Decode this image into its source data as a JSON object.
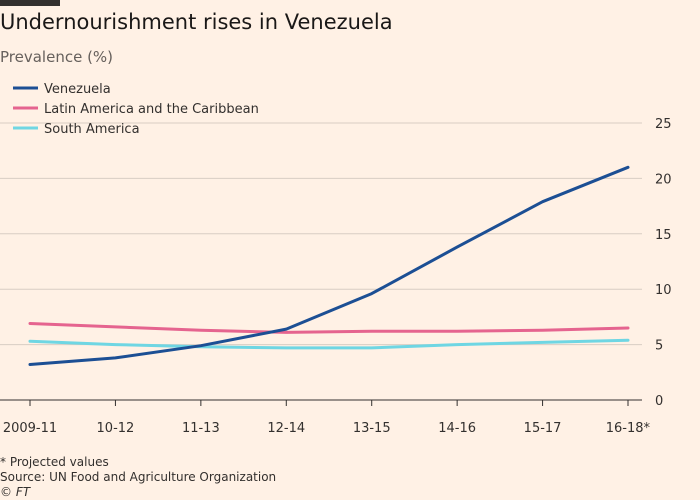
{
  "header": {
    "title": "Undernourishment rises in Venezuela",
    "subtitle": "Prevalence (%)"
  },
  "footer": {
    "note": "* Projected values",
    "source": "Source: UN Food and Agriculture Organization",
    "credit": "© FT"
  },
  "chart_data": {
    "type": "line",
    "title": "Undernourishment rises in Venezuela",
    "subtitle": "Prevalence (%)",
    "xlabel": "",
    "ylabel": "",
    "categories": [
      "2009-11",
      "10-12",
      "11-13",
      "12-14",
      "13-15",
      "14-16",
      "15-17",
      "16-18*"
    ],
    "ylim": [
      0,
      25
    ],
    "yticks": [
      0,
      5,
      10,
      15,
      20,
      25
    ],
    "grid": true,
    "legend_position": "top-left",
    "series": [
      {
        "name": "Venezuela",
        "color": "#1c4f94",
        "values": [
          3.2,
          3.8,
          4.9,
          6.4,
          9.6,
          13.8,
          17.9,
          21.0
        ]
      },
      {
        "name": "Latin America and the Caribbean",
        "color": "#e5648f",
        "values": [
          6.9,
          6.6,
          6.3,
          6.1,
          6.2,
          6.2,
          6.3,
          6.5
        ]
      },
      {
        "name": "South America",
        "color": "#6fd6e3",
        "values": [
          5.3,
          5.0,
          4.8,
          4.7,
          4.7,
          5.0,
          5.2,
          5.4
        ]
      }
    ]
  }
}
